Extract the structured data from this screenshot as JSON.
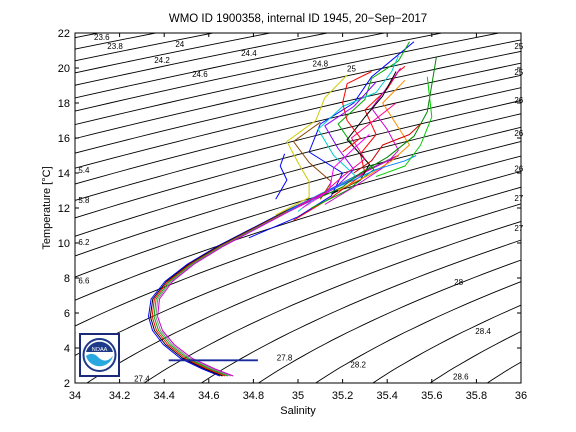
{
  "chart_data": {
    "type": "line",
    "title": "WMO ID 1900358, internal ID 1945, 20−Sep−2017",
    "xlabel": "Salinity",
    "ylabel": "Temperature [°C]",
    "xlim": [
      34,
      36
    ],
    "ylim": [
      2,
      22
    ],
    "x_ticks": [
      "34",
      "34.2",
      "34.4",
      "34.6",
      "34.8",
      "35",
      "35.2",
      "35.4",
      "35.6",
      "35.8",
      "36"
    ],
    "y_ticks": [
      "2",
      "4",
      "6",
      "8",
      "10",
      "12",
      "14",
      "16",
      "18",
      "20",
      "22"
    ],
    "grid": false,
    "legend": "none",
    "isopycnal_contour_labels": [
      {
        "text": "23.6",
        "s": 34.12,
        "t": 21.6
      },
      {
        "text": "23.8",
        "s": 34.18,
        "t": 21.1
      },
      {
        "text": "24",
        "s": 34.47,
        "t": 21.2
      },
      {
        "text": "24.2",
        "s": 34.39,
        "t": 20.3
      },
      {
        "text": "24.4",
        "s": 34.78,
        "t": 20.7
      },
      {
        "text": "24.6",
        "s": 34.56,
        "t": 19.5
      },
      {
        "text": "24.8",
        "s": 35.1,
        "t": 20.1
      },
      {
        "text": "25",
        "s": 35.24,
        "t": 19.8
      },
      {
        "text": "25",
        "s": 35.99,
        "t": 21.1
      },
      {
        "text": "25",
        "s": 35.99,
        "t": 19.6
      },
      {
        "text": "26",
        "s": 35.99,
        "t": 18.0
      },
      {
        "text": "26",
        "s": 35.99,
        "t": 16.1
      },
      {
        "text": "26",
        "s": 35.99,
        "t": 14.1
      },
      {
        "text": "27",
        "s": 35.99,
        "t": 12.4
      },
      {
        "text": "27",
        "s": 35.99,
        "t": 10.7
      },
      {
        "text": "5.4",
        "s": 34.04,
        "t": 14.0
      },
      {
        "text": "5.8",
        "s": 34.04,
        "t": 12.3
      },
      {
        "text": "6.2",
        "s": 34.04,
        "t": 9.9
      },
      {
        "text": "6.6",
        "s": 34.04,
        "t": 7.7
      },
      {
        "text": "28",
        "s": 35.72,
        "t": 7.6
      },
      {
        "text": "28.4",
        "s": 35.83,
        "t": 4.8
      },
      {
        "text": "27.8",
        "s": 34.94,
        "t": 3.3
      },
      {
        "text": "28.2",
        "s": 35.27,
        "t": 2.9
      },
      {
        "text": "28.6",
        "s": 35.73,
        "t": 2.2
      },
      {
        "text": "27.4",
        "s": 34.3,
        "t": 2.1
      }
    ],
    "deep_profile": {
      "name": "",
      "s": [
        34.68,
        34.6,
        34.5,
        34.42,
        34.37,
        34.35,
        34.36,
        34.42,
        34.52,
        34.65,
        34.8,
        34.95,
        35.08,
        35.2,
        35.32,
        35.45
      ],
      "t": [
        2.4,
        2.8,
        3.4,
        4.2,
        5.0,
        5.8,
        6.8,
        7.8,
        8.8,
        9.8,
        10.8,
        11.8,
        12.6,
        13.4,
        14.2,
        15.0
      ]
    },
    "surface_profiles": [
      {
        "color": "#0000ff",
        "s": [
          34.78,
          35.0,
          35.15,
          35.2,
          35.05,
          35.1,
          35.25,
          35.33,
          35.52
        ],
        "t": [
          10.3,
          11.5,
          12.7,
          14.0,
          15.2,
          16.8,
          18.0,
          19.5,
          21.5
        ]
      },
      {
        "color": "#ff0000",
        "s": [
          34.98,
          35.15,
          35.3,
          35.28,
          35.35,
          35.3,
          35.4,
          35.45,
          35.48
        ],
        "t": [
          11.3,
          12.6,
          14.0,
          15.1,
          16.2,
          17.6,
          18.8,
          19.8,
          20.1
        ]
      },
      {
        "color": "#00aa00",
        "s": [
          35.06,
          35.22,
          35.34,
          35.25,
          35.18,
          35.3,
          35.33,
          35.45,
          35.5
        ],
        "t": [
          12.0,
          13.0,
          14.2,
          15.5,
          16.8,
          18.2,
          19.4,
          20.4,
          21.5
        ]
      },
      {
        "color": "#00cccc",
        "s": [
          35.0,
          35.1,
          35.26,
          35.16,
          35.09,
          35.2,
          35.35,
          35.42,
          35.45
        ],
        "t": [
          11.8,
          12.8,
          13.8,
          15.0,
          16.5,
          17.8,
          18.6,
          19.8,
          20.7
        ]
      },
      {
        "color": "#cc00cc",
        "s": [
          35.12,
          35.25,
          35.38,
          35.45,
          35.4,
          35.33,
          35.4,
          35.46
        ],
        "t": [
          12.2,
          13.2,
          14.3,
          15.3,
          16.5,
          17.7,
          18.9,
          20.0
        ]
      },
      {
        "color": "#cccc00",
        "s": [
          34.9,
          35.05,
          35.05,
          35.0,
          34.95,
          35.08,
          35.12,
          35.22
        ],
        "t": [
          11.6,
          12.6,
          13.5,
          14.6,
          15.8,
          17.0,
          18.3,
          19.6
        ]
      },
      {
        "color": "#000000",
        "s": [
          35.15,
          35.28,
          35.32,
          35.22,
          35.3,
          35.38,
          35.44
        ],
        "t": [
          12.8,
          13.6,
          14.5,
          15.9,
          17.2,
          18.4,
          19.8
        ]
      },
      {
        "color": "#ff8800",
        "s": [
          35.18,
          35.32,
          35.42,
          35.5,
          35.44,
          35.38,
          35.48
        ],
        "t": [
          13.0,
          13.9,
          14.7,
          15.6,
          16.8,
          18.0,
          19.3
        ]
      },
      {
        "color": "#8800ff",
        "s": [
          35.05,
          35.18,
          35.25,
          35.18,
          35.12,
          35.25,
          35.35
        ],
        "t": [
          12.4,
          13.3,
          14.2,
          15.4,
          16.7,
          17.8,
          19.2
        ]
      },
      {
        "color": "#0088ff",
        "s": [
          34.95,
          35.1,
          35.25,
          35.35,
          35.48,
          35.53
        ],
        "t": [
          11.8,
          12.8,
          13.6,
          14.2,
          14.7,
          15.0
        ]
      },
      {
        "color": "#ff0088",
        "s": [
          35.0,
          35.12,
          35.2,
          35.3,
          35.24,
          35.36,
          35.44
        ],
        "t": [
          12.1,
          12.9,
          13.8,
          14.8,
          16.0,
          17.2,
          18.0
        ]
      },
      {
        "color": "#008800",
        "s": [
          35.08,
          35.2,
          35.28,
          35.4,
          35.52,
          35.58,
          35.62
        ],
        "t": [
          12.5,
          13.2,
          14.0,
          14.9,
          16.1,
          17.5,
          20.6
        ]
      },
      {
        "color": "#884400",
        "s": [
          35.1,
          35.15,
          35.05,
          34.98,
          35.1
        ],
        "t": [
          12.5,
          13.5,
          14.6,
          15.8,
          16.9
        ]
      },
      {
        "color": "#ff0000",
        "s": [
          35.2,
          35.28,
          35.22,
          35.2,
          35.22,
          35.33
        ],
        "t": [
          15.2,
          16.0,
          17.0,
          18.0,
          19.1,
          19.8
        ]
      },
      {
        "color": "#0000ff",
        "s": [
          34.9,
          34.95,
          34.92,
          34.94
        ],
        "t": [
          12.5,
          13.6,
          14.4,
          15.1
        ]
      },
      {
        "color": "#00cc00",
        "s": [
          35.35,
          35.48,
          35.55,
          35.6,
          35.58
        ],
        "t": [
          13.8,
          14.4,
          15.6,
          17.2,
          19.5
        ]
      },
      {
        "color": "#ff00ff",
        "s": [
          35.02,
          35.14,
          35.16,
          35.25,
          35.32
        ],
        "t": [
          12.0,
          13.0,
          14.3,
          15.4,
          16.2
        ]
      },
      {
        "color": "#cc0000",
        "s": [
          35.25,
          35.33,
          35.38,
          35.5,
          35.55
        ],
        "t": [
          14.0,
          14.7,
          15.6,
          16.2,
          16.8
        ]
      }
    ]
  },
  "logo": {
    "text": "NOAA",
    "ring_color": "#1d3a8a",
    "wave_color": "#29a8e0"
  }
}
